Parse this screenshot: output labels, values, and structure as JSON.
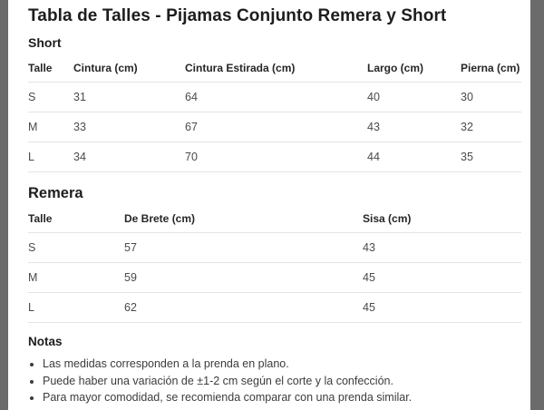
{
  "page": {
    "title": "Tabla de Talles - Pijamas Conjunto Remera y Short"
  },
  "short_section": {
    "heading": "Short",
    "table": {
      "headers": [
        "Talle",
        "Cintura (cm)",
        "Cintura Estirada (cm)",
        "Largo (cm)",
        "Pierna (cm)"
      ],
      "rows": [
        [
          "S",
          "31",
          "64",
          "40",
          "30"
        ],
        [
          "M",
          "33",
          "67",
          "43",
          "32"
        ],
        [
          "L",
          "34",
          "70",
          "44",
          "35"
        ]
      ]
    }
  },
  "remera_section": {
    "heading": "Remera",
    "table": {
      "headers": [
        "Talle",
        "De Brete (cm)",
        "Sisa (cm)"
      ],
      "rows": [
        [
          "S",
          "57",
          "43"
        ],
        [
          "M",
          "59",
          "45"
        ],
        [
          "L",
          "62",
          "45"
        ]
      ]
    }
  },
  "notes": {
    "heading": "Notas",
    "items": [
      "Las medidas corresponden a la prenda en plano.",
      "Puede haber una variación de ±1-2 cm según el corte y la confección.",
      "Para mayor comodidad, se recomienda comparar con una prenda similar."
    ]
  },
  "colors": {
    "text_primary": "#1d1d1d",
    "text_secondary": "#4a4a4a",
    "border": "#e7e3df",
    "side_bar": "#6b6b6b",
    "background": "#ffffff"
  }
}
